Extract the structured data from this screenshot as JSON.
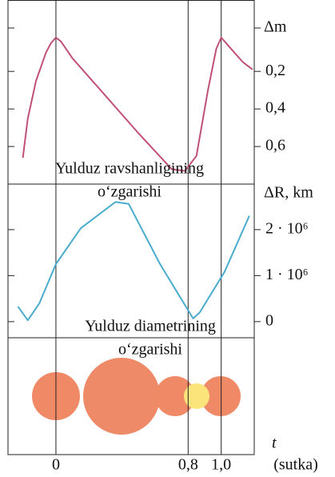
{
  "x_axis": {
    "label": "t",
    "unit": "(sutka)",
    "xlim": [
      -0.29,
      1.2
    ],
    "xticks": [
      {
        "value": 0,
        "label": "0"
      },
      {
        "value": 0.8,
        "label": "0,8"
      },
      {
        "value": 1.0,
        "label": "1,0"
      }
    ]
  },
  "chart_data": [
    {
      "type": "line",
      "y_label": "Δm",
      "y_inverted": true,
      "ylim": [
        -0.18,
        0.8
      ],
      "yticks": [
        {
          "value": 0.2,
          "label": "0,2"
        },
        {
          "value": 0.4,
          "label": "0,4"
        },
        {
          "value": 0.6,
          "label": "0,6"
        }
      ],
      "annotation": [
        "Yulduz ravshanligining",
        "o‘zgarishi"
      ],
      "x": [
        -0.2,
        -0.17,
        -0.12,
        -0.06,
        -0.03,
        0.0,
        0.03,
        0.1,
        0.3,
        0.5,
        0.7,
        0.78,
        0.85,
        0.92,
        0.97,
        1.0,
        1.05,
        1.13,
        1.19
      ],
      "series": [
        {
          "color": "#c0507a",
          "values": [
            0.66,
            0.45,
            0.25,
            0.1,
            0.05,
            0.02,
            0.04,
            0.13,
            0.33,
            0.53,
            0.72,
            0.73,
            0.65,
            0.3,
            0.08,
            0.02,
            0.07,
            0.15,
            0.19
          ]
        }
      ]
    },
    {
      "type": "line",
      "y_label": "ΔR, km",
      "ylim": [
        -350000,
        2990000
      ],
      "yticks": [
        0,
        {
          "value": 1000000,
          "label": "1 · 10⁶"
        },
        {
          "value": 2000000,
          "label": "2 · 10⁶"
        }
      ],
      "annotation": [
        "Yulduz diametrining",
        "o‘zgarishi"
      ],
      "x": [
        -0.23,
        -0.17,
        -0.1,
        0.0,
        0.15,
        0.36,
        0.44,
        0.63,
        0.83,
        0.87,
        1.02,
        1.17
      ],
      "series": [
        {
          "color": "#4aaccc",
          "values": [
            330000,
            30000,
            400000,
            1250000,
            2030000,
            2600000,
            2560000,
            1250000,
            70000,
            200000,
            1080000,
            2300000
          ]
        }
      ]
    }
  ]
}
